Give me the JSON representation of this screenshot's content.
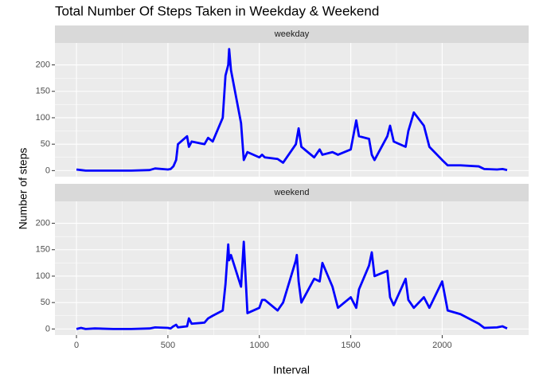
{
  "chart_data": {
    "type": "line",
    "title": "Total Number Of Steps Taken in Weekday & Weekend",
    "x_label": "Interval",
    "y_label": "Number of steps",
    "x": [
      0,
      25,
      50,
      100,
      200,
      300,
      400,
      430,
      500,
      515,
      530,
      545,
      555,
      605,
      615,
      630,
      700,
      720,
      745,
      800,
      815,
      830,
      835,
      845,
      900,
      915,
      935,
      1000,
      1015,
      1030,
      1100,
      1130,
      1200,
      1205,
      1215,
      1230,
      1300,
      1330,
      1345,
      1400,
      1430,
      1500,
      1530,
      1545,
      1600,
      1615,
      1630,
      1700,
      1715,
      1735,
      1800,
      1815,
      1845,
      1900,
      1930,
      2000,
      2030,
      2100,
      2200,
      2230,
      2300,
      2330,
      2355
    ],
    "series": [
      {
        "name": "weekday",
        "color": "#0000ff",
        "values": [
          2,
          1,
          0,
          0,
          0,
          0,
          1,
          4,
          2,
          3,
          8,
          20,
          50,
          65,
          45,
          55,
          50,
          62,
          55,
          100,
          180,
          200,
          230,
          190,
          90,
          20,
          35,
          25,
          30,
          25,
          22,
          15,
          50,
          60,
          80,
          45,
          25,
          40,
          30,
          35,
          30,
          40,
          95,
          65,
          60,
          30,
          20,
          65,
          85,
          55,
          45,
          75,
          110,
          85,
          45,
          20,
          10,
          10,
          8,
          3,
          2,
          3,
          1
        ]
      },
      {
        "name": "weekend",
        "color": "#0000ff",
        "values": [
          0,
          2,
          0,
          1,
          0,
          0,
          1,
          3,
          2,
          1,
          5,
          8,
          3,
          5,
          20,
          10,
          12,
          20,
          25,
          35,
          85,
          160,
          130,
          140,
          80,
          165,
          30,
          40,
          55,
          55,
          35,
          50,
          130,
          140,
          90,
          50,
          95,
          90,
          125,
          80,
          40,
          60,
          40,
          75,
          120,
          145,
          100,
          110,
          60,
          45,
          95,
          55,
          40,
          60,
          40,
          90,
          35,
          28,
          10,
          2,
          3,
          5,
          1
        ]
      }
    ],
    "xlim": [
      -117.75,
      2472.75
    ],
    "xticks": [
      0,
      500,
      1000,
      1500,
      2000
    ],
    "ylim": [
      -11.5,
      241.5
    ],
    "yticks": [
      0,
      50,
      100,
      150,
      200
    ],
    "grid": true
  }
}
